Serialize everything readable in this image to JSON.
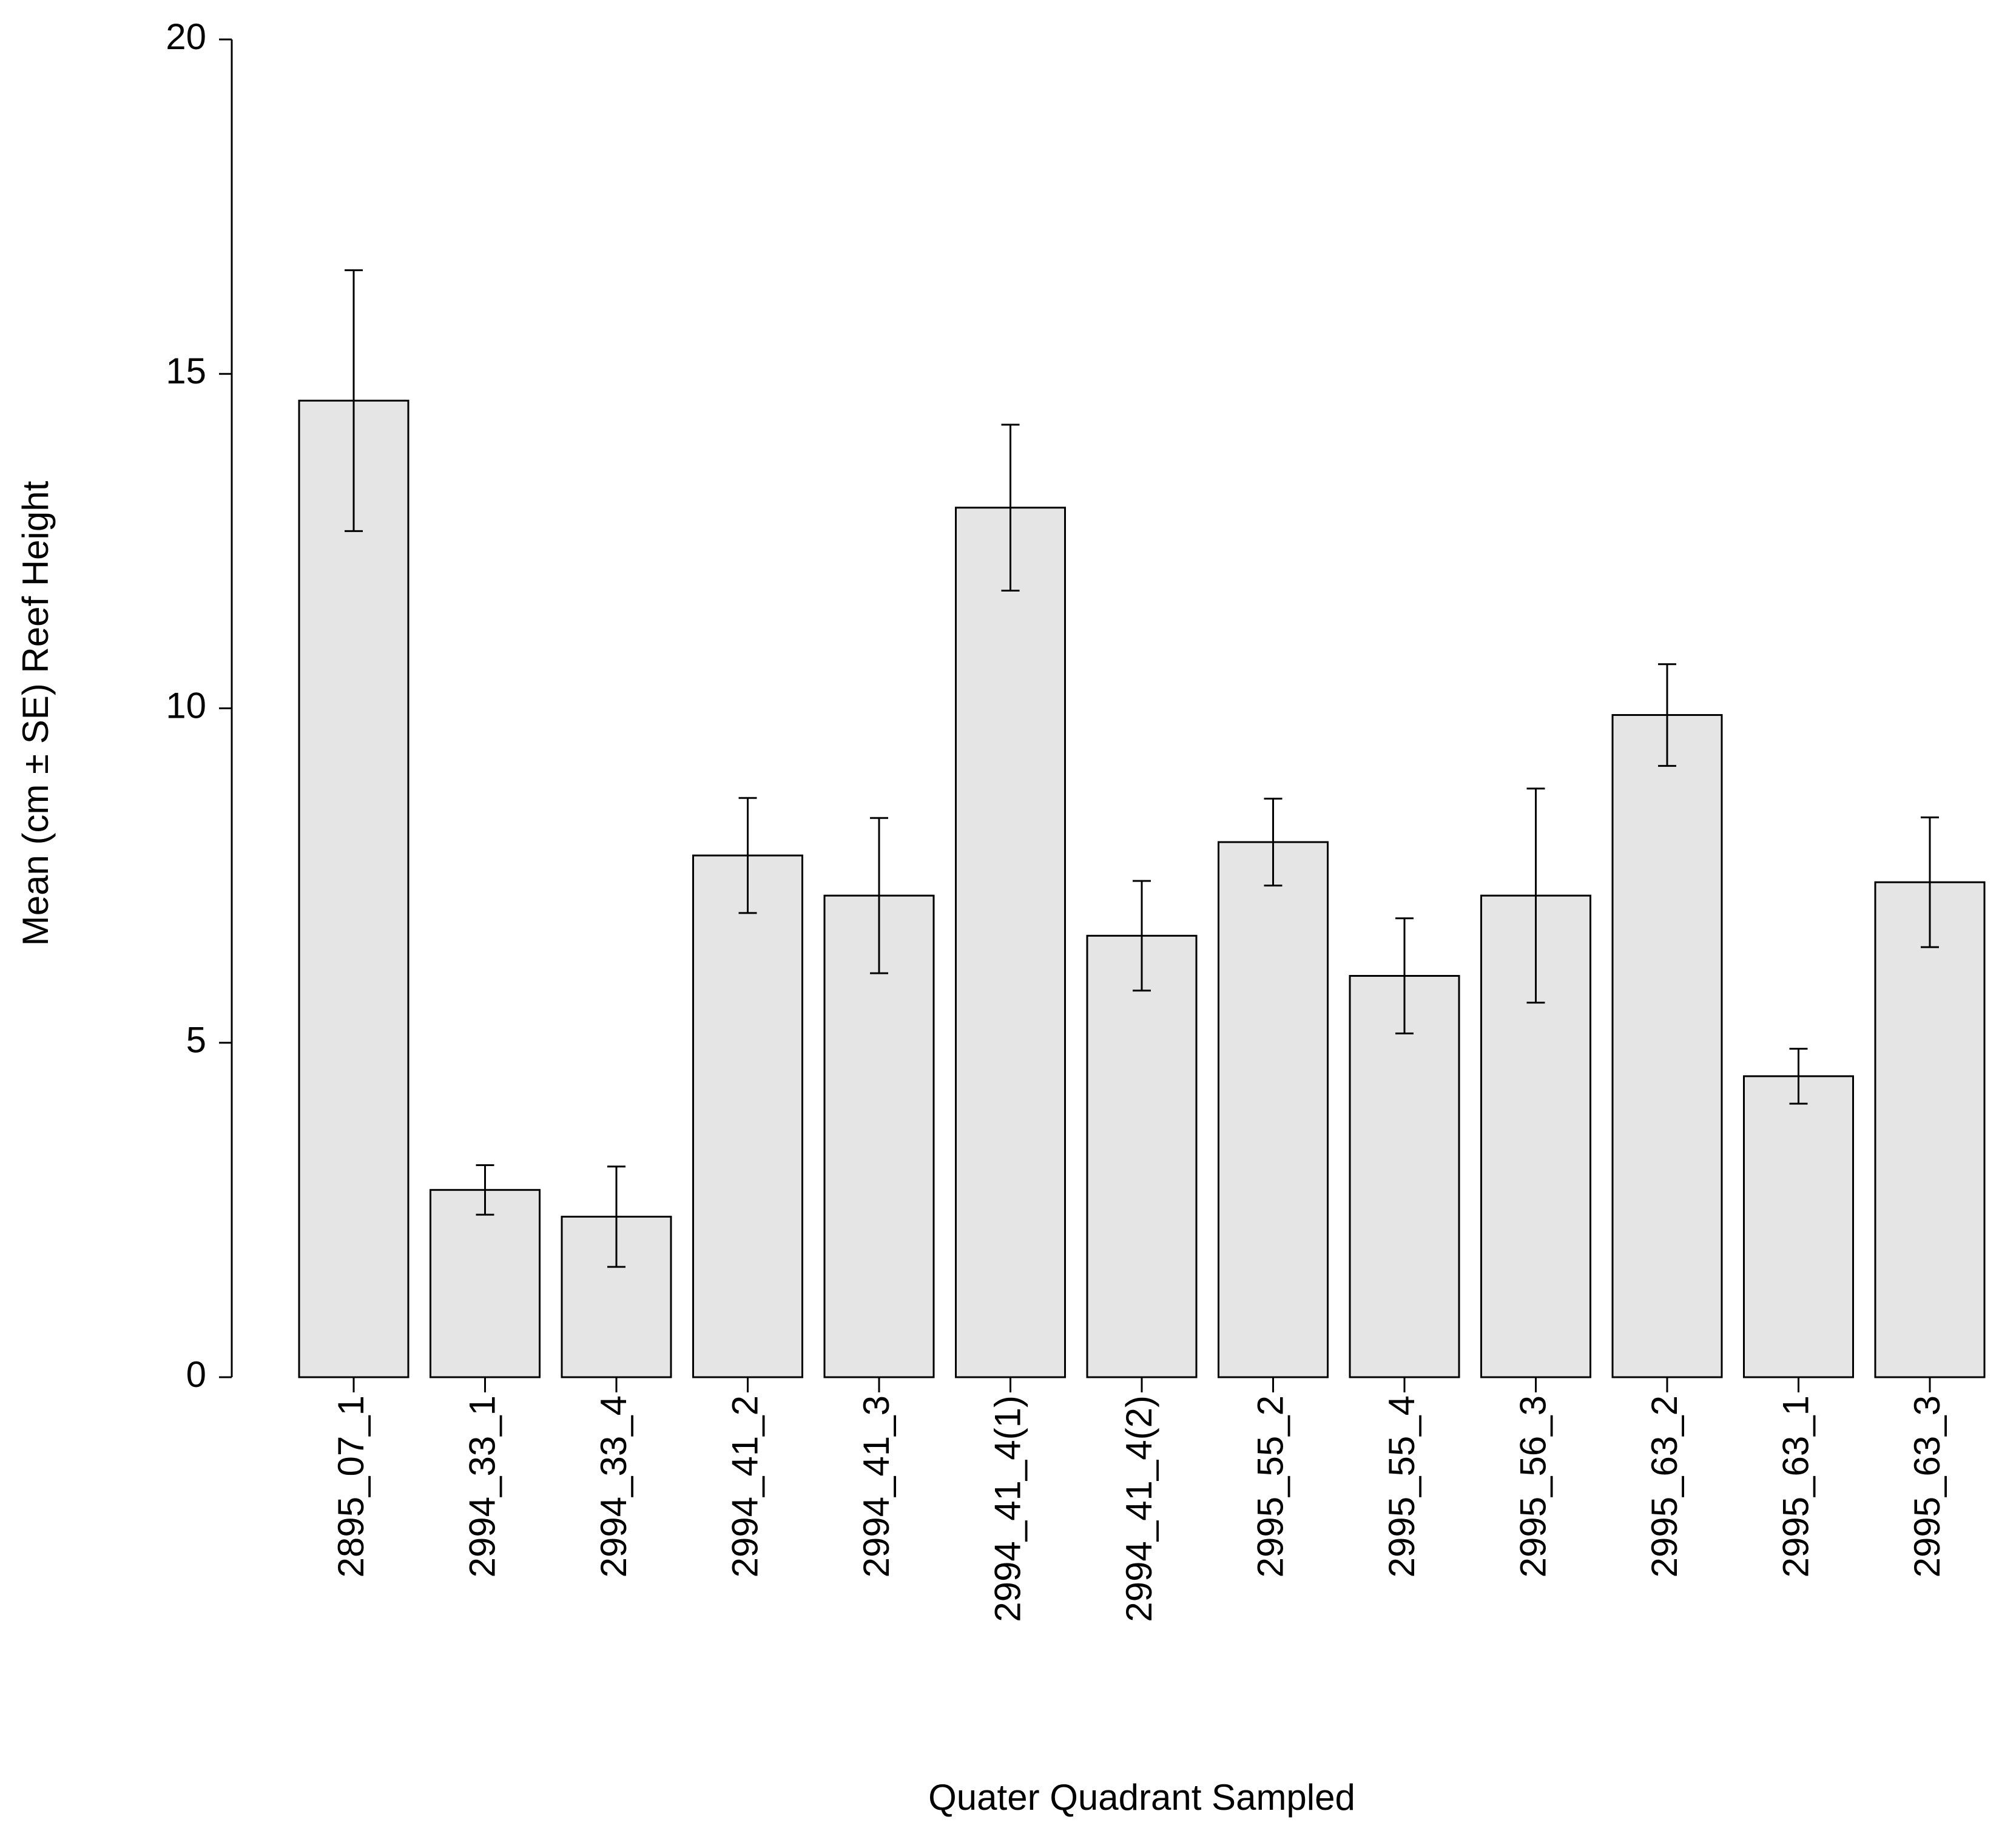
{
  "chart_data": {
    "type": "bar",
    "x_label": "Quater Quadrant Sampled",
    "y_label": "Mean (cm ± SE) Reef Height",
    "categories": [
      "2895_07_1",
      "2994_33_1",
      "2994_33_4",
      "2994_41_2",
      "2994_41_3",
      "2994_41_4(1)",
      "2994_41_4(2)",
      "2995_55_2",
      "2995_55_4",
      "2995_56_3",
      "2995_63_2",
      "2995_63_1",
      "2995_63_3"
    ],
    "values": [
      14.6,
      2.8,
      2.4,
      7.8,
      7.2,
      13.0,
      6.6,
      8.0,
      6.0,
      7.2,
      9.9,
      4.5,
      7.4
    ],
    "errors": [
      1.95,
      0.37,
      0.75,
      0.86,
      1.16,
      1.24,
      0.82,
      0.65,
      0.86,
      1.6,
      0.76,
      0.41,
      0.97
    ],
    "color": "#e5e5e5",
    "ylim": [
      0,
      20
    ],
    "yticks": [
      0,
      5,
      10,
      15,
      20
    ]
  }
}
